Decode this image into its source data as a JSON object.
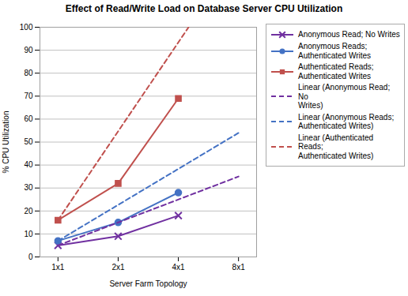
{
  "chart_data": {
    "type": "line",
    "title": "Effect of Read/Write Load on Database Server CPU Utilization",
    "xlabel": "Server Farm Topology",
    "ylabel": "% CPU Utilization",
    "xlim": [
      -0.3,
      3.3
    ],
    "xticks": [
      {
        "value": 0,
        "label": "1x1"
      },
      {
        "value": 1,
        "label": "2x1"
      },
      {
        "value": 2,
        "label": "4x1"
      },
      {
        "value": 3,
        "label": "8x1"
      }
    ],
    "ylim": [
      0,
      100
    ],
    "yticks": [
      0,
      10,
      20,
      30,
      40,
      50,
      60,
      70,
      80,
      90,
      100
    ],
    "grid": "y",
    "legend": "right",
    "series": [
      {
        "name": "Anonymous Read; No Writes",
        "color": "#7030A0",
        "marker": "x",
        "line_style": "solid",
        "x": [
          0,
          1,
          2
        ],
        "values": [
          5,
          9,
          18
        ]
      },
      {
        "name": "Anonymous Reads;\nAuthenticated Writes",
        "color": "#4472C4",
        "marker": "circle",
        "line_style": "solid",
        "x": [
          0,
          1,
          2
        ],
        "values": [
          7,
          15,
          28
        ]
      },
      {
        "name": "Authenticated Reads;\nAuthenticated Writes",
        "color": "#C0504D",
        "marker": "square",
        "line_style": "solid",
        "x": [
          0,
          1,
          2
        ],
        "values": [
          16,
          32,
          69
        ]
      },
      {
        "name": "Linear (Anonymous Read; No\nWrites)",
        "color": "#7030A0",
        "line_style": "dashed",
        "x": [
          0,
          3
        ],
        "values": [
          5,
          35
        ]
      },
      {
        "name": "Linear (Anonymous Reads;\nAuthenticated Writes)",
        "color": "#4472C4",
        "line_style": "dashed",
        "x": [
          0,
          3
        ],
        "values": [
          7,
          54
        ]
      },
      {
        "name": "Linear (Authenticated Reads;\nAuthenticated Writes)",
        "color": "#C0504D",
        "line_style": "dashed",
        "x": [
          0,
          2.17
        ],
        "values": [
          16,
          100
        ]
      }
    ]
  }
}
